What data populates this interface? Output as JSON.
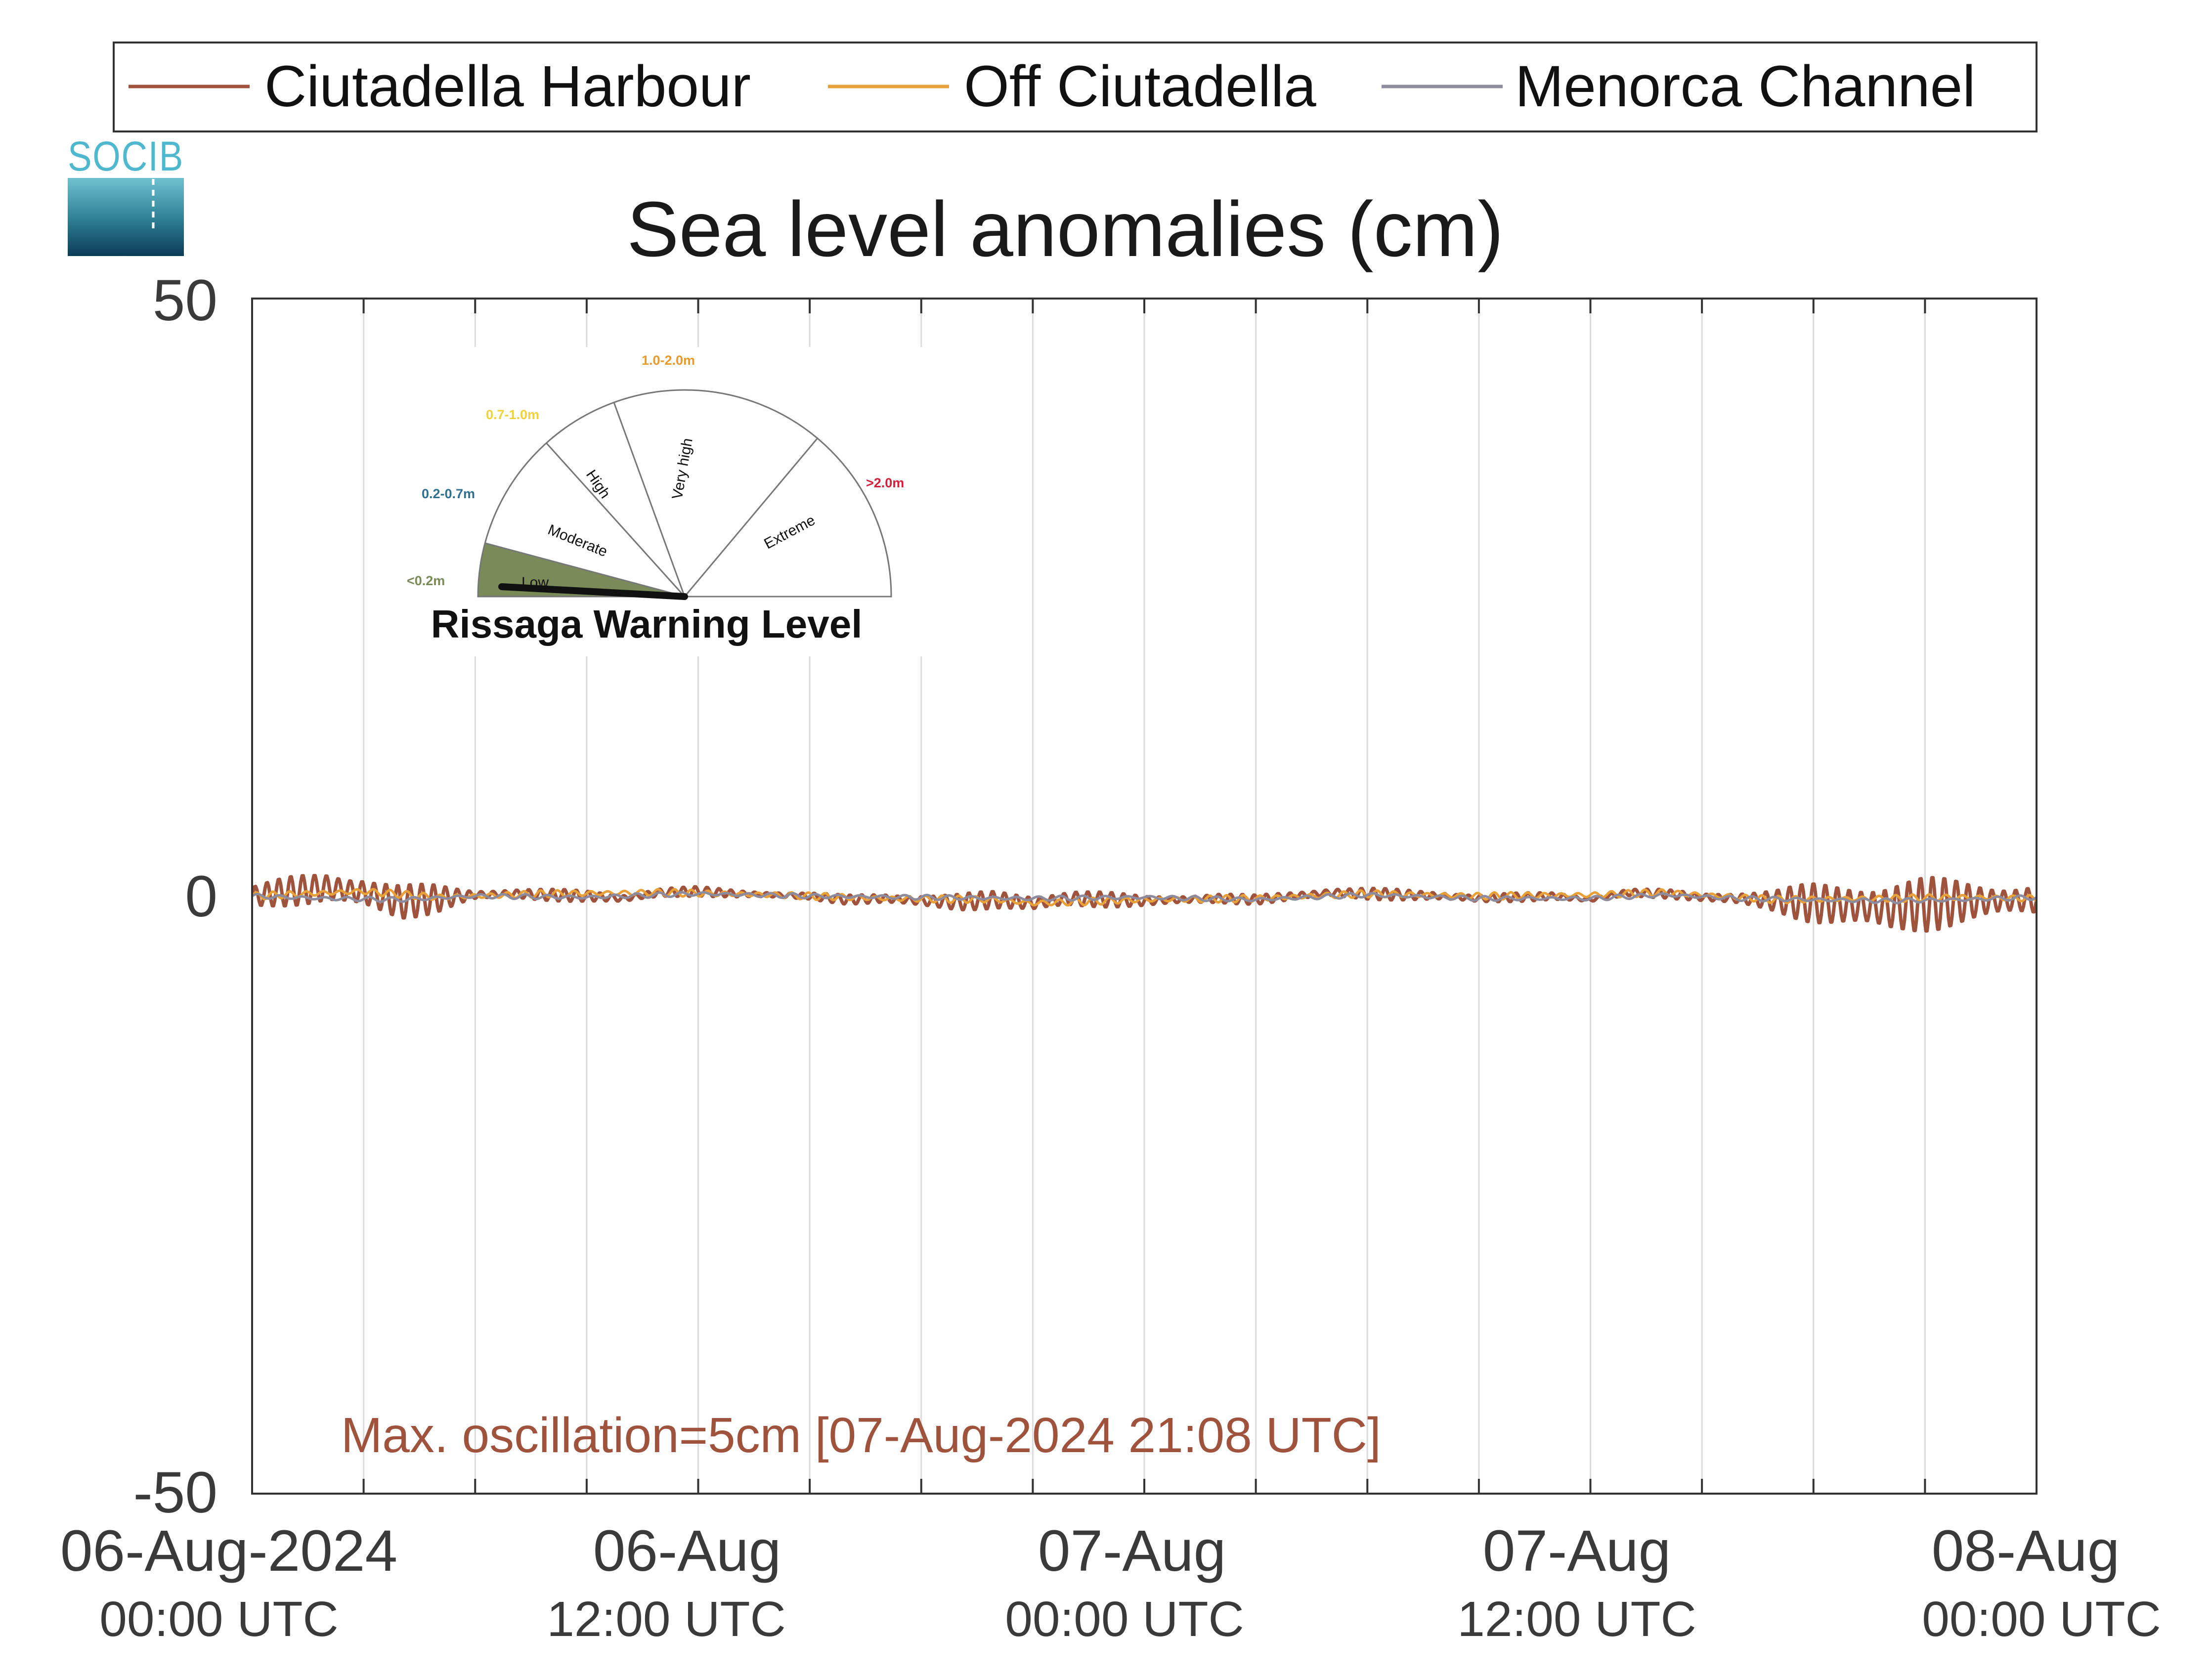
{
  "chart_data": {
    "type": "line",
    "title": "Sea level anomalies (cm)",
    "ylim": [
      -50,
      50
    ],
    "yticks": [
      "50",
      "0",
      "-50"
    ],
    "x_ticks": [
      {
        "main": "06-Aug-2024",
        "sub": "00:00 UTC"
      },
      {
        "main": "06-Aug",
        "sub": "12:00 UTC"
      },
      {
        "main": "07-Aug",
        "sub": "00:00 UTC"
      },
      {
        "main": "07-Aug",
        "sub": "12:00 UTC"
      },
      {
        "main": "08-Aug",
        "sub": "00:00 UTC"
      }
    ],
    "x_range_hours": [
      0,
      48
    ],
    "grid": "vertical every 3 hours",
    "legend_position": "top",
    "series": [
      {
        "name": "Ciutadella Harbour",
        "color": "#a0533c",
        "points": [
          [
            0,
            0
          ],
          [
            1,
            0.4
          ],
          [
            2,
            0.7
          ],
          [
            3,
            0.3
          ],
          [
            4,
            -0.5
          ],
          [
            5,
            -0.2
          ],
          [
            6,
            0.1
          ],
          [
            7,
            0.2
          ],
          [
            8,
            0.1
          ],
          [
            9,
            0
          ],
          [
            10,
            -0.2
          ],
          [
            11,
            0.3
          ],
          [
            12,
            0.4
          ],
          [
            13,
            0.2
          ],
          [
            14,
            0.1
          ],
          [
            15,
            0
          ],
          [
            16,
            -0.3
          ],
          [
            17,
            -0.2
          ],
          [
            18,
            -0.4
          ],
          [
            19,
            -0.5
          ],
          [
            20,
            -0.3
          ],
          [
            21,
            -0.6
          ],
          [
            22,
            -0.2
          ],
          [
            23,
            -0.3
          ],
          [
            24,
            -0.4
          ],
          [
            25,
            -0.3
          ],
          [
            26,
            -0.2
          ],
          [
            27,
            -0.3
          ],
          [
            28,
            0
          ],
          [
            29,
            0.3
          ],
          [
            30,
            0.2
          ],
          [
            31,
            0.1
          ],
          [
            32,
            0
          ],
          [
            33,
            -0.2
          ],
          [
            34,
            -0.1
          ],
          [
            35,
            0
          ],
          [
            36,
            -0.3
          ],
          [
            37,
            0.3
          ],
          [
            38,
            0.2
          ],
          [
            39,
            -0.1
          ],
          [
            40,
            -0.2
          ],
          [
            41,
            -0.4
          ],
          [
            42,
            -0.6
          ],
          [
            43,
            -0.8
          ],
          [
            44,
            -1.0
          ],
          [
            45,
            -0.7
          ],
          [
            46,
            -0.5
          ],
          [
            47,
            -0.4
          ],
          [
            48,
            -0.3
          ]
        ],
        "oscillation_amplitude": [
          [
            0,
            1.0
          ],
          [
            2,
            1.5
          ],
          [
            3,
            1.8
          ],
          [
            4,
            1.6
          ],
          [
            5,
            1.2
          ],
          [
            6,
            0.5
          ],
          [
            9,
            0.5
          ],
          [
            12,
            0.4
          ],
          [
            15,
            0.3
          ],
          [
            18,
            0.6
          ],
          [
            21,
            0.9
          ],
          [
            24,
            0.5
          ],
          [
            27,
            0.4
          ],
          [
            30,
            0.5
          ],
          [
            33,
            0.4
          ],
          [
            36,
            0.3
          ],
          [
            39,
            0.4
          ],
          [
            41,
            1.0
          ],
          [
            42,
            1.8
          ],
          [
            43,
            2.3
          ],
          [
            44,
            2.6
          ],
          [
            45,
            2.4
          ],
          [
            46,
            2.0
          ],
          [
            47,
            1.7
          ],
          [
            48,
            1.5
          ]
        ]
      },
      {
        "name": "Off Ciutadella",
        "color": "#e8a038",
        "points": [
          [
            0,
            0
          ],
          [
            3,
            0.4
          ],
          [
            5,
            -0.1
          ],
          [
            8,
            0.2
          ],
          [
            11,
            0.3
          ],
          [
            14,
            0.1
          ],
          [
            17,
            -0.2
          ],
          [
            20,
            -0.3
          ],
          [
            21,
            -0.6
          ],
          [
            24,
            -0.3
          ],
          [
            27,
            -0.2
          ],
          [
            30,
            0.2
          ],
          [
            33,
            0
          ],
          [
            36,
            0.1
          ],
          [
            38,
            0.3
          ],
          [
            41,
            -0.3
          ],
          [
            44,
            -0.2
          ],
          [
            46,
            -0.1
          ],
          [
            48,
            -0.2
          ]
        ],
        "oscillation_amplitude": [
          [
            0,
            0.3
          ],
          [
            48,
            0.3
          ]
        ]
      },
      {
        "name": "Menorca Channel",
        "color": "#8c8c9e",
        "points": [
          [
            0,
            0
          ],
          [
            2,
            -0.2
          ],
          [
            4,
            -0.3
          ],
          [
            6,
            0
          ],
          [
            9,
            -0.1
          ],
          [
            12,
            0.2
          ],
          [
            15,
            0
          ],
          [
            18,
            -0.1
          ],
          [
            21,
            -0.2
          ],
          [
            24,
            -0.1
          ],
          [
            27,
            -0.3
          ],
          [
            30,
            0.1
          ],
          [
            33,
            -0.2
          ],
          [
            36,
            -0.2
          ],
          [
            38,
            0.1
          ],
          [
            40,
            -0.2
          ],
          [
            42,
            -0.3
          ],
          [
            44,
            -0.4
          ],
          [
            46,
            -0.3
          ],
          [
            48,
            -0.1
          ]
        ],
        "oscillation_amplitude": [
          [
            0,
            0.2
          ],
          [
            48,
            0.2
          ]
        ]
      }
    ],
    "annotation": "Max. oscillation=5cm [07-Aug-2024 21:08 UTC]"
  },
  "logo": {
    "text": "SOCIB"
  },
  "gauge": {
    "title": "Rissaga Warning Level",
    "current_level": "Low",
    "levels": [
      {
        "name": "Low",
        "range": "<0.2m",
        "color": "#7a8a58",
        "active": true
      },
      {
        "name": "Moderate",
        "range": "0.2-0.7m",
        "color": "#2f6f8f",
        "active": false
      },
      {
        "name": "High",
        "range": "0.7-1.0m",
        "color": "#f0d23c",
        "active": false
      },
      {
        "name": "Very high",
        "range": "1.0-2.0m",
        "color": "#e89a2c",
        "active": false
      },
      {
        "name": "Extreme",
        "range": ">2.0m",
        "color": "#d0213a",
        "active": false
      }
    ]
  }
}
